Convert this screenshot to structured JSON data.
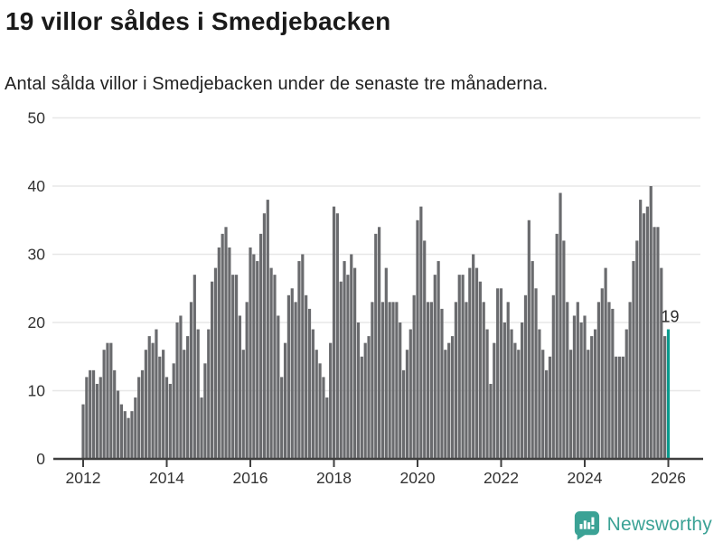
{
  "header": {
    "title": "19 villor såldes i Smedjebacken",
    "subtitle": "Antal sålda villor i Smedjebacken under de senaste tre månaderna."
  },
  "chart_data": {
    "type": "bar",
    "title": "19 villor såldes i Smedjebacken",
    "subtitle": "Antal sålda villor i Smedjebacken under de senaste tre månaderna.",
    "xlabel": "",
    "ylabel": "",
    "ylim": [
      0,
      50
    ],
    "y_ticks": [
      0,
      10,
      20,
      30,
      40,
      50
    ],
    "x_tick_labels": [
      "2012",
      "2014",
      "2016",
      "2018",
      "2020",
      "2022",
      "2024",
      "2026"
    ],
    "grid": "horizontal",
    "frequency": "monthly",
    "x_start": "2012-01",
    "values": [
      8,
      12,
      13,
      13,
      11,
      12,
      16,
      17,
      17,
      13,
      10,
      8,
      7,
      6,
      7,
      9,
      12,
      13,
      16,
      18,
      17,
      19,
      15,
      16,
      12,
      11,
      14,
      20,
      21,
      16,
      18,
      23,
      27,
      19,
      9,
      14,
      19,
      26,
      28,
      31,
      33,
      34,
      31,
      27,
      27,
      21,
      16,
      23,
      31,
      30,
      29,
      33,
      36,
      38,
      28,
      27,
      21,
      12,
      17,
      24,
      25,
      23,
      29,
      30,
      24,
      22,
      19,
      16,
      14,
      12,
      9,
      17,
      37,
      36,
      26,
      29,
      27,
      30,
      28,
      20,
      15,
      17,
      18,
      23,
      33,
      34,
      23,
      28,
      23,
      23,
      23,
      20,
      13,
      16,
      19,
      24,
      35,
      37,
      32,
      23,
      23,
      27,
      29,
      22,
      16,
      17,
      18,
      23,
      27,
      27,
      23,
      28,
      30,
      28,
      26,
      23,
      19,
      11,
      17,
      25,
      25,
      20,
      23,
      19,
      17,
      16,
      20,
      24,
      35,
      29,
      25,
      19,
      16,
      13,
      15,
      24,
      33,
      39,
      32,
      23,
      16,
      21,
      23,
      20,
      21,
      16,
      18,
      19,
      23,
      25,
      28,
      23,
      22,
      15,
      15,
      15,
      19,
      23,
      29,
      32,
      38,
      36,
      37,
      40,
      34,
      34,
      28,
      18,
      19
    ],
    "highlight": {
      "index": 168,
      "value": 19,
      "label": "19"
    },
    "legend_position": "none"
  },
  "footer": {
    "brand": "Newsworthy"
  },
  "colors": {
    "bar": "#6a6b6e",
    "highlight": "#0a9b8e",
    "grid": "#e7e7e7",
    "axis": "#3f3f3f",
    "text": "#333333",
    "title": "#1a1a1a",
    "brand": "#3ba295"
  }
}
